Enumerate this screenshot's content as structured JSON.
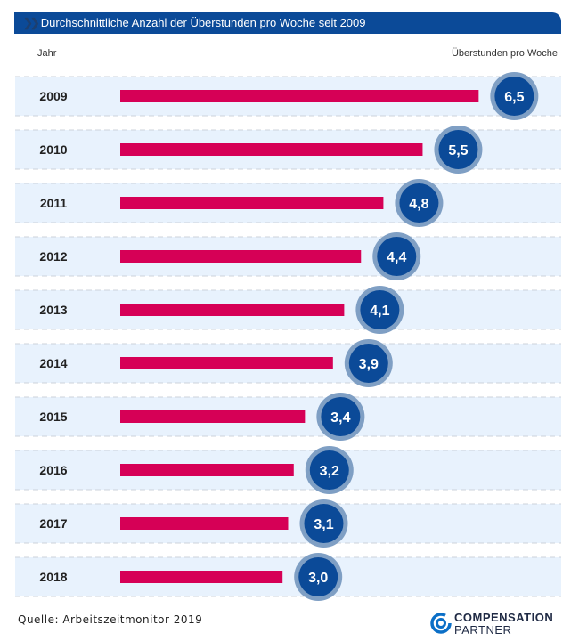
{
  "chart_data": {
    "type": "bar",
    "orientation": "horizontal",
    "title": "Durchschnittliche Anzahl der Überstunden pro Woche seit 2009",
    "xlabel": "Jahr",
    "ylabel": "Überstunden pro Woche",
    "categories": [
      "2009",
      "2010",
      "2011",
      "2012",
      "2013",
      "2014",
      "2015",
      "2016",
      "2017",
      "2018"
    ],
    "values": [
      6.5,
      5.5,
      4.8,
      4.4,
      4.1,
      3.9,
      3.4,
      3.2,
      3.1,
      3.0
    ],
    "value_labels": [
      "6,5",
      "5,5",
      "4,8",
      "4,4",
      "4,1",
      "3,9",
      "3,4",
      "3,2",
      "3,1",
      "3,0"
    ],
    "colors": {
      "bar": "#d60056",
      "bubble": "#0b4a98",
      "bubble_ring": "#7f9fc4",
      "row_band": "#e8f2fd",
      "header": "#0b4a98"
    }
  },
  "footer": {
    "source": "Quelle: Arbeitszeitmonitor 2019",
    "logo_line1": "COMPENSATION",
    "logo_line2": "PARTNER"
  }
}
